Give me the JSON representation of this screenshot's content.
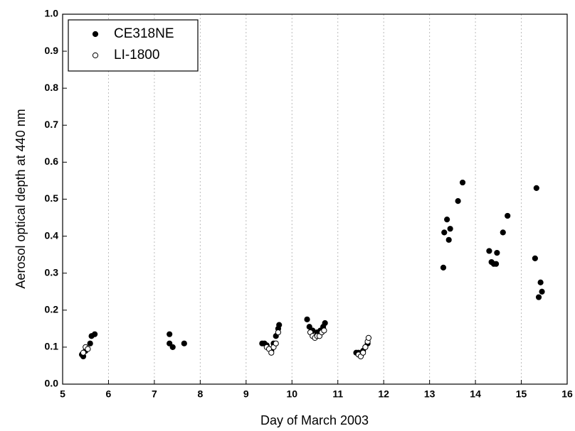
{
  "chart_data": {
    "type": "scatter",
    "x_label": "Day of March 2003",
    "y_label": "Aerosol optical depth at 440 nm",
    "xlim": [
      5,
      16
    ],
    "xticks": [
      5,
      6,
      7,
      8,
      9,
      10,
      11,
      12,
      13,
      14,
      15,
      16
    ],
    "ylim": [
      0,
      1
    ],
    "yticks": [
      {
        "value": 0,
        "label": "0.0"
      },
      0.1,
      0.2,
      0.3,
      0.4,
      0.5,
      0.6,
      0.7,
      0.8,
      0.9,
      {
        "value": 1,
        "label": "1.0"
      }
    ],
    "grid": "x",
    "legend": "upper left",
    "series": [
      {
        "name": "CE318NE",
        "color": "#000000",
        "marker": "filled",
        "x": [
          5.42,
          5.45,
          5.5,
          5.6,
          5.63,
          5.7,
          7.33,
          7.33,
          7.4,
          7.65,
          9.35,
          9.4,
          9.45,
          9.55,
          9.6,
          9.65,
          9.7,
          9.72,
          10.33,
          10.38,
          10.45,
          10.55,
          10.62,
          10.68,
          10.72,
          11.4,
          11.45,
          11.5,
          11.55,
          11.6,
          11.65,
          13.3,
          13.32,
          13.38,
          13.42,
          13.45,
          13.62,
          13.72,
          14.3,
          14.35,
          14.4,
          14.45,
          14.47,
          14.6,
          14.7,
          15.3,
          15.33,
          15.38,
          15.42,
          15.45
        ],
        "values": [
          0.08,
          0.075,
          0.09,
          0.11,
          0.13,
          0.135,
          0.135,
          0.11,
          0.1,
          0.11,
          0.11,
          0.11,
          0.105,
          0.09,
          0.11,
          0.13,
          0.15,
          0.16,
          0.175,
          0.155,
          0.145,
          0.14,
          0.145,
          0.155,
          0.165,
          0.085,
          0.085,
          0.08,
          0.09,
          0.1,
          0.11,
          0.315,
          0.41,
          0.445,
          0.39,
          0.42,
          0.495,
          0.545,
          0.36,
          0.33,
          0.325,
          0.325,
          0.355,
          0.41,
          0.455,
          0.34,
          0.53,
          0.235,
          0.275,
          0.25
        ]
      },
      {
        "name": "LI-1800",
        "color": "#000000",
        "marker": "open",
        "x": [
          5.45,
          5.5,
          5.55,
          9.45,
          9.5,
          9.55,
          9.6,
          9.65,
          9.7,
          10.4,
          10.45,
          10.5,
          10.55,
          10.6,
          10.65,
          10.7,
          11.45,
          11.5,
          11.55,
          11.6,
          11.65,
          11.67
        ],
        "values": [
          0.085,
          0.1,
          0.095,
          0.1,
          0.095,
          0.085,
          0.1,
          0.11,
          0.14,
          0.14,
          0.13,
          0.125,
          0.13,
          0.13,
          0.14,
          0.145,
          0.08,
          0.075,
          0.085,
          0.1,
          0.115,
          0.125
        ]
      }
    ]
  }
}
